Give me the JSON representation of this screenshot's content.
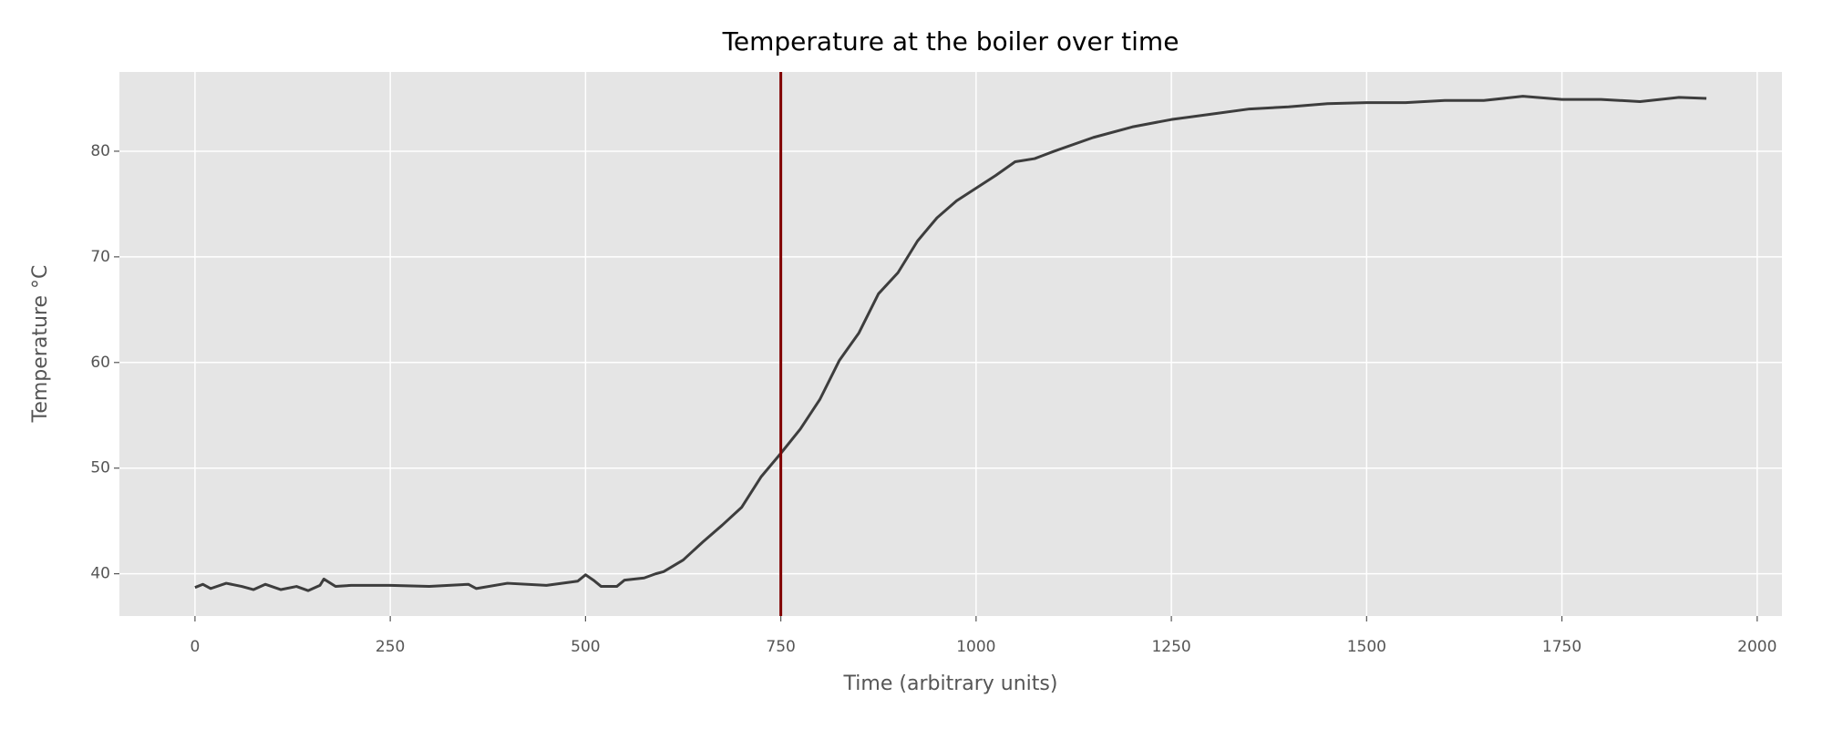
{
  "chart_data": {
    "type": "line",
    "title": "Temperature at the boiler over time",
    "xlabel": "Time (arbitrary units)",
    "ylabel": "Temperature °C",
    "x": [
      0,
      10,
      20,
      40,
      60,
      75,
      90,
      110,
      130,
      145,
      160,
      165,
      180,
      200,
      250,
      300,
      350,
      360,
      400,
      450,
      490,
      500,
      510,
      520,
      540,
      550,
      575,
      590,
      600,
      625,
      650,
      675,
      700,
      725,
      750,
      775,
      800,
      825,
      850,
      875,
      900,
      925,
      950,
      975,
      1000,
      1025,
      1050,
      1075,
      1100,
      1150,
      1200,
      1250,
      1300,
      1350,
      1400,
      1450,
      1500,
      1550,
      1600,
      1650,
      1700,
      1750,
      1800,
      1850,
      1900,
      1935
    ],
    "values": [
      38.7,
      39.0,
      38.6,
      39.1,
      38.8,
      38.5,
      39.0,
      38.5,
      38.8,
      38.4,
      38.9,
      39.5,
      38.8,
      38.9,
      38.9,
      38.8,
      39.0,
      38.6,
      39.1,
      38.9,
      39.3,
      39.9,
      39.4,
      38.8,
      38.8,
      39.4,
      39.6,
      40.0,
      40.2,
      41.3,
      43.0,
      44.6,
      46.3,
      49.2,
      51.4,
      53.7,
      56.5,
      60.2,
      62.8,
      66.5,
      68.5,
      71.5,
      73.7,
      75.3,
      76.5,
      77.7,
      79.0,
      79.3,
      80.0,
      81.3,
      82.3,
      83.0,
      83.5,
      84.0,
      84.2,
      84.5,
      84.6,
      84.6,
      84.8,
      84.8,
      85.2,
      84.9,
      84.9,
      84.7,
      85.1,
      85.0
    ],
    "color": "#3d3d3d",
    "vline": {
      "x": 750,
      "color": "#800000"
    },
    "xlim": [
      -96.75,
      2031.75
    ],
    "xticks": [
      0,
      250,
      500,
      750,
      1000,
      1250,
      1500,
      1750,
      2000
    ],
    "ylim": [
      36.0,
      87.5
    ],
    "yticks": [
      40,
      50,
      60,
      70,
      80
    ],
    "grid": true
  }
}
